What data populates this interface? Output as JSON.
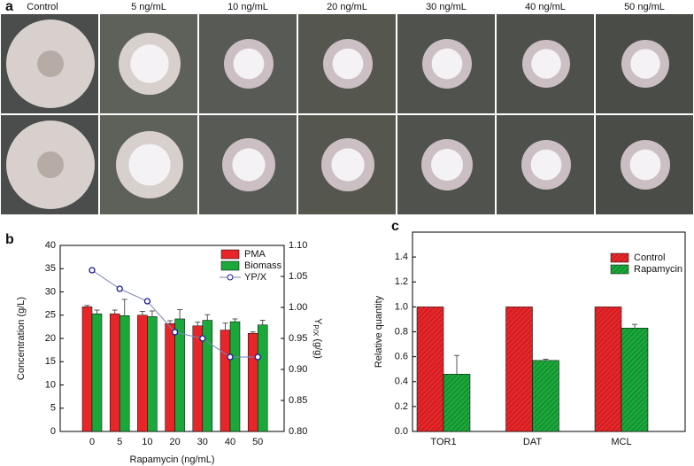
{
  "photo_panel": {
    "label": "a",
    "columns": [
      "Control",
      "5 ng/mL",
      "10 ng/mL",
      "20 ng/mL",
      "30 ng/mL",
      "40 ng/mL",
      "50 ng/mL"
    ]
  },
  "chart_data": [
    {
      "type": "bar",
      "panel_label": "b",
      "xlabel": "Rapamycin (ng/mL)",
      "ylabel": "Concentration (g/L)",
      "y2label": {
        "main": "Y",
        "sub": "P/X",
        "unit": "(g/g)"
      },
      "categories": [
        "0",
        "5",
        "10",
        "20",
        "30",
        "40",
        "50"
      ],
      "series": [
        {
          "name": "PMA",
          "color": "#e8262a",
          "values": [
            26.8,
            25.3,
            25.0,
            23.2,
            22.7,
            21.8,
            21.1
          ],
          "errors": [
            0.3,
            0.8,
            0.8,
            0.6,
            0.8,
            1.5,
            0.3
          ]
        },
        {
          "name": "Biomass",
          "color": "#1aa83a",
          "values": [
            25.3,
            24.9,
            24.7,
            24.2,
            23.9,
            23.6,
            22.9
          ],
          "errors": [
            0.8,
            3.5,
            1.2,
            2.0,
            1.2,
            0.6,
            1.0
          ]
        },
        {
          "name": "YP/X",
          "color": "#1a1a9a",
          "axis": "y2",
          "values": [
            1.06,
            1.03,
            1.01,
            0.96,
            0.95,
            0.92,
            0.92
          ]
        }
      ],
      "ylim": [
        0,
        40
      ],
      "yticks": [
        0,
        5,
        10,
        15,
        20,
        25,
        30,
        35,
        40
      ],
      "y2lim": [
        0.8,
        1.1
      ],
      "y2ticks": [
        {
          "value": 0.8,
          "label": "0.80"
        },
        {
          "value": 0.85,
          "label": "0.85"
        },
        {
          "value": 0.9,
          "label": "0.90"
        },
        {
          "value": 0.95,
          "label": "0.95"
        },
        {
          "value": 1.0,
          "label": "1.00"
        },
        {
          "value": 1.05,
          "label": "1.05"
        },
        {
          "value": 1.1,
          "label": "1.10"
        }
      ],
      "legend": "top-right"
    },
    {
      "type": "bar",
      "panel_label": "c",
      "ylabel": "Relative quantity",
      "categories": [
        "TOR1",
        "DAT",
        "MCL"
      ],
      "series": [
        {
          "name": "Control",
          "color": "#e8262a",
          "values": [
            1.0,
            1.0,
            1.0
          ],
          "errors": [
            0,
            0,
            0
          ]
        },
        {
          "name": "Rapamycin",
          "color": "#1aa83a",
          "values": [
            0.46,
            0.57,
            0.83
          ],
          "errors": [
            0.15,
            0.01,
            0.03
          ]
        }
      ],
      "ylim": [
        0,
        1.6
      ],
      "yticks": [
        {
          "value": 0,
          "label": "0.0"
        },
        {
          "value": 0.2,
          "label": "0.2"
        },
        {
          "value": 0.4,
          "label": "0.4"
        },
        {
          "value": 0.6,
          "label": "0.6"
        },
        {
          "value": 0.8,
          "label": "0.8"
        },
        {
          "value": 1.0,
          "label": "1.0"
        },
        {
          "value": 1.2,
          "label": "1.2"
        },
        {
          "value": 1.4,
          "label": "1.4"
        }
      ],
      "legend": "top-right"
    }
  ]
}
